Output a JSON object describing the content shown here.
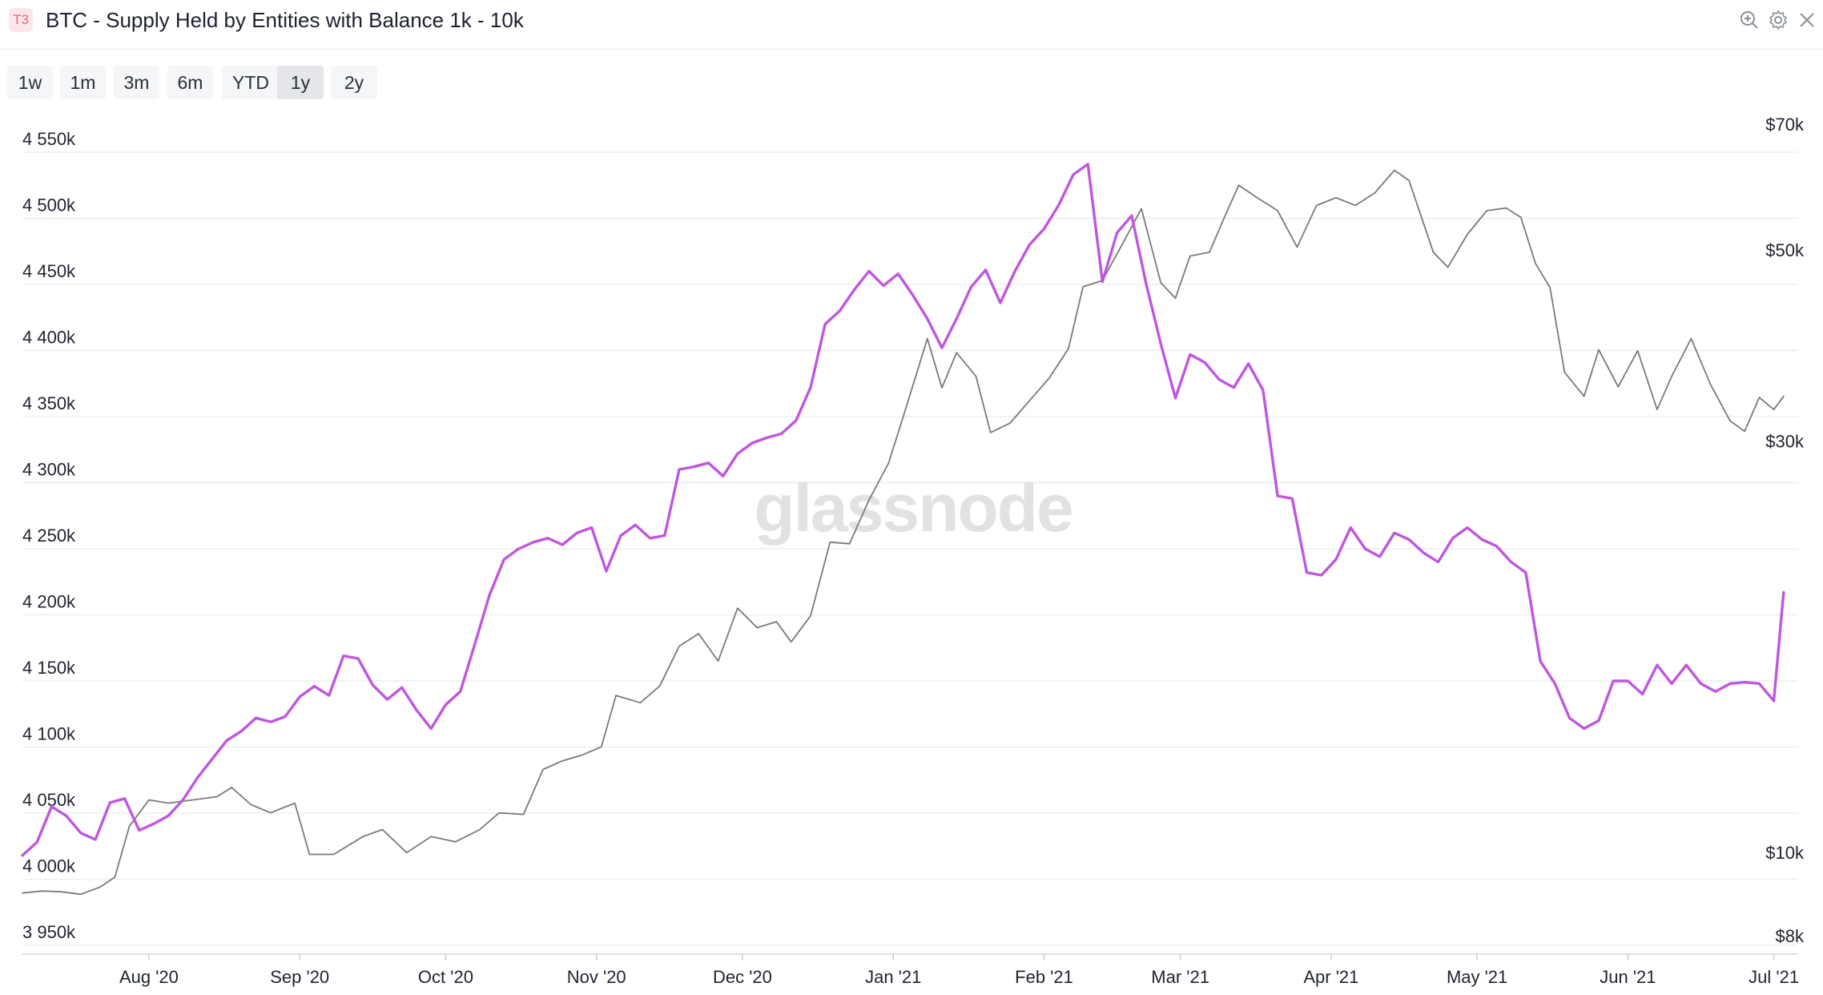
{
  "header": {
    "tier_badge": "T3",
    "title": "BTC - Supply Held by Entities with Balance 1k - 10k",
    "icons": [
      "zoom-in-icon",
      "gear-icon",
      "close-icon"
    ]
  },
  "range_buttons": [
    {
      "label": "1w",
      "active": false
    },
    {
      "label": "1m",
      "active": false
    },
    {
      "label": "3m",
      "active": false
    },
    {
      "label": "6m",
      "active": false
    },
    {
      "label": "YTD",
      "active": false
    },
    {
      "label": "1y",
      "active": true
    },
    {
      "label": "2y",
      "active": false
    }
  ],
  "watermark": "glassnode",
  "colors": {
    "supply_line": "#c056e0",
    "price_line": "#7a7a7a",
    "grid": "#eceef1"
  },
  "chart_data": {
    "type": "line",
    "title": "BTC - Supply Held by Entities with Balance 1k - 10k",
    "x_range": [
      "2020-07-06",
      "2021-07-06"
    ],
    "x_ticks": [
      {
        "date": "2020-08-01",
        "label": "Aug '20"
      },
      {
        "date": "2020-09-01",
        "label": "Sep '20"
      },
      {
        "date": "2020-10-01",
        "label": "Oct '20"
      },
      {
        "date": "2020-11-01",
        "label": "Nov '20"
      },
      {
        "date": "2020-12-01",
        "label": "Dec '20"
      },
      {
        "date": "2021-01-01",
        "label": "Jan '21"
      },
      {
        "date": "2021-02-01",
        "label": "Feb '21"
      },
      {
        "date": "2021-03-01",
        "label": "Mar '21"
      },
      {
        "date": "2021-04-01",
        "label": "Apr '21"
      },
      {
        "date": "2021-05-01",
        "label": "May '21"
      },
      {
        "date": "2021-06-01",
        "label": "Jun '21"
      },
      {
        "date": "2021-07-01",
        "label": "Jul '21"
      }
    ],
    "y_left": {
      "ticks": [
        3950000,
        4000000,
        4050000,
        4100000,
        4150000,
        4200000,
        4250000,
        4300000,
        4350000,
        4400000,
        4450000,
        4500000,
        4550000
      ],
      "labels": [
        "3 950k",
        "4 000k",
        "4 050k",
        "4 100k",
        "4 150k",
        "4 200k",
        "4 250k",
        "4 300k",
        "4 350k",
        "4 400k",
        "4 450k",
        "4 500k",
        "4 550k"
      ],
      "range": [
        3950000,
        4550000
      ]
    },
    "y_right": {
      "scale": "log",
      "ticks": [
        8000,
        10000,
        30000,
        50000,
        70000
      ],
      "labels": [
        "$8k",
        "$10k",
        "$30k",
        "$50k",
        "$70k"
      ]
    },
    "grid": true,
    "series": [
      {
        "axis": "left",
        "points": [
          [
            "2020-07-06",
            4018000
          ],
          [
            "2020-07-09",
            4028000
          ],
          [
            "2020-07-12",
            4055000
          ],
          [
            "2020-07-15",
            4048000
          ],
          [
            "2020-07-18",
            4035000
          ],
          [
            "2020-07-21",
            4030000
          ],
          [
            "2020-07-24",
            4058000
          ],
          [
            "2020-07-27",
            4061000
          ],
          [
            "2020-07-30",
            4037000
          ],
          [
            "2020-08-02",
            4042000
          ],
          [
            "2020-08-05",
            4048000
          ],
          [
            "2020-08-08",
            4060000
          ],
          [
            "2020-08-11",
            4077000
          ],
          [
            "2020-08-14",
            4091000
          ],
          [
            "2020-08-17",
            4105000
          ],
          [
            "2020-08-20",
            4112000
          ],
          [
            "2020-08-23",
            4122000
          ],
          [
            "2020-08-26",
            4119000
          ],
          [
            "2020-08-29",
            4123000
          ],
          [
            "2020-09-01",
            4138000
          ],
          [
            "2020-09-04",
            4146000
          ],
          [
            "2020-09-07",
            4139000
          ],
          [
            "2020-09-10",
            4169000
          ],
          [
            "2020-09-13",
            4167000
          ],
          [
            "2020-09-16",
            4147000
          ],
          [
            "2020-09-19",
            4136000
          ],
          [
            "2020-09-22",
            4145000
          ],
          [
            "2020-09-25",
            4128000
          ],
          [
            "2020-09-28",
            4114000
          ],
          [
            "2020-10-01",
            4132000
          ],
          [
            "2020-10-04",
            4142000
          ],
          [
            "2020-10-07",
            4178000
          ],
          [
            "2020-10-10",
            4215000
          ],
          [
            "2020-10-13",
            4242000
          ],
          [
            "2020-10-16",
            4250000
          ],
          [
            "2020-10-19",
            4255000
          ],
          [
            "2020-10-22",
            4258000
          ],
          [
            "2020-10-25",
            4253000
          ],
          [
            "2020-10-28",
            4262000
          ],
          [
            "2020-10-31",
            4266000
          ],
          [
            "2020-11-03",
            4233000
          ],
          [
            "2020-11-06",
            4260000
          ],
          [
            "2020-11-09",
            4268000
          ],
          [
            "2020-11-12",
            4258000
          ],
          [
            "2020-11-15",
            4260000
          ],
          [
            "2020-11-18",
            4310000
          ],
          [
            "2020-11-21",
            4312000
          ],
          [
            "2020-11-24",
            4315000
          ],
          [
            "2020-11-27",
            4305000
          ],
          [
            "2020-11-30",
            4322000
          ],
          [
            "2020-12-03",
            4330000
          ],
          [
            "2020-12-06",
            4334000
          ],
          [
            "2020-12-09",
            4337000
          ],
          [
            "2020-12-12",
            4347000
          ],
          [
            "2020-12-15",
            4372000
          ],
          [
            "2020-12-18",
            4420000
          ],
          [
            "2020-12-21",
            4430000
          ],
          [
            "2020-12-24",
            4446000
          ],
          [
            "2020-12-27",
            4460000
          ],
          [
            "2020-12-30",
            4449000
          ],
          [
            "2021-01-02",
            4458000
          ],
          [
            "2021-01-05",
            4442000
          ],
          [
            "2021-01-08",
            4424000
          ],
          [
            "2021-01-11",
            4402000
          ],
          [
            "2021-01-14",
            4424000
          ],
          [
            "2021-01-17",
            4448000
          ],
          [
            "2021-01-20",
            4461000
          ],
          [
            "2021-01-23",
            4436000
          ],
          [
            "2021-01-26",
            4460000
          ],
          [
            "2021-01-29",
            4480000
          ],
          [
            "2021-02-01",
            4492000
          ],
          [
            "2021-02-04",
            4510000
          ],
          [
            "2021-02-07",
            4533000
          ],
          [
            "2021-02-10",
            4541000
          ],
          [
            "2021-02-13",
            4452000
          ],
          [
            "2021-02-16",
            4489000
          ],
          [
            "2021-02-19",
            4502000
          ],
          [
            "2021-02-22",
            4450000
          ],
          [
            "2021-02-25",
            4405000
          ],
          [
            "2021-02-28",
            4364000
          ],
          [
            "2021-03-03",
            4397000
          ],
          [
            "2021-03-06",
            4391000
          ],
          [
            "2021-03-09",
            4378000
          ],
          [
            "2021-03-12",
            4372000
          ],
          [
            "2021-03-15",
            4390000
          ],
          [
            "2021-03-18",
            4370000
          ],
          [
            "2021-03-21",
            4290000
          ],
          [
            "2021-03-24",
            4288000
          ],
          [
            "2021-03-27",
            4232000
          ],
          [
            "2021-03-30",
            4230000
          ],
          [
            "2021-04-02",
            4242000
          ],
          [
            "2021-04-05",
            4266000
          ],
          [
            "2021-04-08",
            4250000
          ],
          [
            "2021-04-11",
            4244000
          ],
          [
            "2021-04-14",
            4262000
          ],
          [
            "2021-04-17",
            4257000
          ],
          [
            "2021-04-20",
            4247000
          ],
          [
            "2021-04-23",
            4240000
          ],
          [
            "2021-04-26",
            4258000
          ],
          [
            "2021-04-29",
            4266000
          ],
          [
            "2021-05-02",
            4257000
          ],
          [
            "2021-05-05",
            4252000
          ],
          [
            "2021-05-08",
            4240000
          ],
          [
            "2021-05-11",
            4232000
          ],
          [
            "2021-05-14",
            4165000
          ],
          [
            "2021-05-17",
            4148000
          ],
          [
            "2021-05-20",
            4122000
          ],
          [
            "2021-05-23",
            4114000
          ],
          [
            "2021-05-26",
            4120000
          ],
          [
            "2021-05-29",
            4150000
          ],
          [
            "2021-06-01",
            4150000
          ],
          [
            "2021-06-04",
            4140000
          ],
          [
            "2021-06-07",
            4162000
          ],
          [
            "2021-06-10",
            4148000
          ],
          [
            "2021-06-13",
            4162000
          ],
          [
            "2021-06-16",
            4148000
          ],
          [
            "2021-06-19",
            4142000
          ],
          [
            "2021-06-22",
            4148000
          ],
          [
            "2021-06-25",
            4149000
          ],
          [
            "2021-06-28",
            4148000
          ],
          [
            "2021-07-01",
            4135000
          ],
          [
            "2021-07-03",
            4217000
          ]
        ]
      },
      {
        "axis": "right",
        "points": [
          [
            "2020-07-06",
            9200
          ],
          [
            "2020-07-10",
            9250
          ],
          [
            "2020-07-14",
            9230
          ],
          [
            "2020-07-18",
            9170
          ],
          [
            "2020-07-22",
            9350
          ],
          [
            "2020-07-25",
            9600
          ],
          [
            "2020-07-28",
            11000
          ],
          [
            "2020-08-01",
            11800
          ],
          [
            "2020-08-05",
            11700
          ],
          [
            "2020-08-10",
            11800
          ],
          [
            "2020-08-15",
            11900
          ],
          [
            "2020-08-18",
            12200
          ],
          [
            "2020-08-22",
            11650
          ],
          [
            "2020-08-26",
            11400
          ],
          [
            "2020-08-31",
            11700
          ],
          [
            "2020-09-03",
            10200
          ],
          [
            "2020-09-08",
            10200
          ],
          [
            "2020-09-14",
            10700
          ],
          [
            "2020-09-18",
            10900
          ],
          [
            "2020-09-23",
            10250
          ],
          [
            "2020-09-28",
            10700
          ],
          [
            "2020-10-03",
            10550
          ],
          [
            "2020-10-08",
            10900
          ],
          [
            "2020-10-12",
            11400
          ],
          [
            "2020-10-17",
            11350
          ],
          [
            "2020-10-21",
            12800
          ],
          [
            "2020-10-25",
            13100
          ],
          [
            "2020-10-29",
            13300
          ],
          [
            "2020-11-02",
            13600
          ],
          [
            "2020-11-05",
            15600
          ],
          [
            "2020-11-10",
            15300
          ],
          [
            "2020-11-14",
            16000
          ],
          [
            "2020-11-18",
            17800
          ],
          [
            "2020-11-22",
            18400
          ],
          [
            "2020-11-26",
            17100
          ],
          [
            "2020-11-30",
            19700
          ],
          [
            "2020-12-04",
            18700
          ],
          [
            "2020-12-08",
            19000
          ],
          [
            "2020-12-11",
            18000
          ],
          [
            "2020-12-15",
            19300
          ],
          [
            "2020-12-19",
            23500
          ],
          [
            "2020-12-23",
            23400
          ],
          [
            "2020-12-27",
            26300
          ],
          [
            "2020-12-31",
            29000
          ],
          [
            "2021-01-03",
            32800
          ],
          [
            "2021-01-08",
            40500
          ],
          [
            "2021-01-11",
            35500
          ],
          [
            "2021-01-14",
            39000
          ],
          [
            "2021-01-18",
            36600
          ],
          [
            "2021-01-21",
            31500
          ],
          [
            "2021-01-25",
            32300
          ],
          [
            "2021-01-29",
            34300
          ],
          [
            "2021-02-02",
            36400
          ],
          [
            "2021-02-06",
            39400
          ],
          [
            "2021-02-09",
            46500
          ],
          [
            "2021-02-13",
            47300
          ],
          [
            "2021-02-17",
            52000
          ],
          [
            "2021-02-21",
            57300
          ],
          [
            "2021-02-25",
            47000
          ],
          [
            "2021-02-28",
            45100
          ],
          [
            "2021-03-03",
            50500
          ],
          [
            "2021-03-07",
            51000
          ],
          [
            "2021-03-10",
            55900
          ],
          [
            "2021-03-13",
            61000
          ],
          [
            "2021-03-17",
            58900
          ],
          [
            "2021-03-21",
            57000
          ],
          [
            "2021-03-25",
            51700
          ],
          [
            "2021-03-29",
            57800
          ],
          [
            "2021-04-02",
            59000
          ],
          [
            "2021-04-06",
            57800
          ],
          [
            "2021-04-10",
            59800
          ],
          [
            "2021-04-14",
            63500
          ],
          [
            "2021-04-17",
            61800
          ],
          [
            "2021-04-22",
            51000
          ],
          [
            "2021-04-25",
            49000
          ],
          [
            "2021-04-29",
            53500
          ],
          [
            "2021-05-03",
            57000
          ],
          [
            "2021-05-07",
            57400
          ],
          [
            "2021-05-10",
            56000
          ],
          [
            "2021-05-13",
            49500
          ],
          [
            "2021-05-16",
            46400
          ],
          [
            "2021-05-19",
            37000
          ],
          [
            "2021-05-23",
            34700
          ],
          [
            "2021-05-26",
            39300
          ],
          [
            "2021-05-30",
            35600
          ],
          [
            "2021-06-03",
            39200
          ],
          [
            "2021-06-07",
            33500
          ],
          [
            "2021-06-10",
            36600
          ],
          [
            "2021-06-14",
            40500
          ],
          [
            "2021-06-18",
            35800
          ],
          [
            "2021-06-22",
            32500
          ],
          [
            "2021-06-25",
            31600
          ],
          [
            "2021-06-28",
            34600
          ],
          [
            "2021-07-01",
            33500
          ],
          [
            "2021-07-03",
            34700
          ]
        ]
      }
    ]
  }
}
